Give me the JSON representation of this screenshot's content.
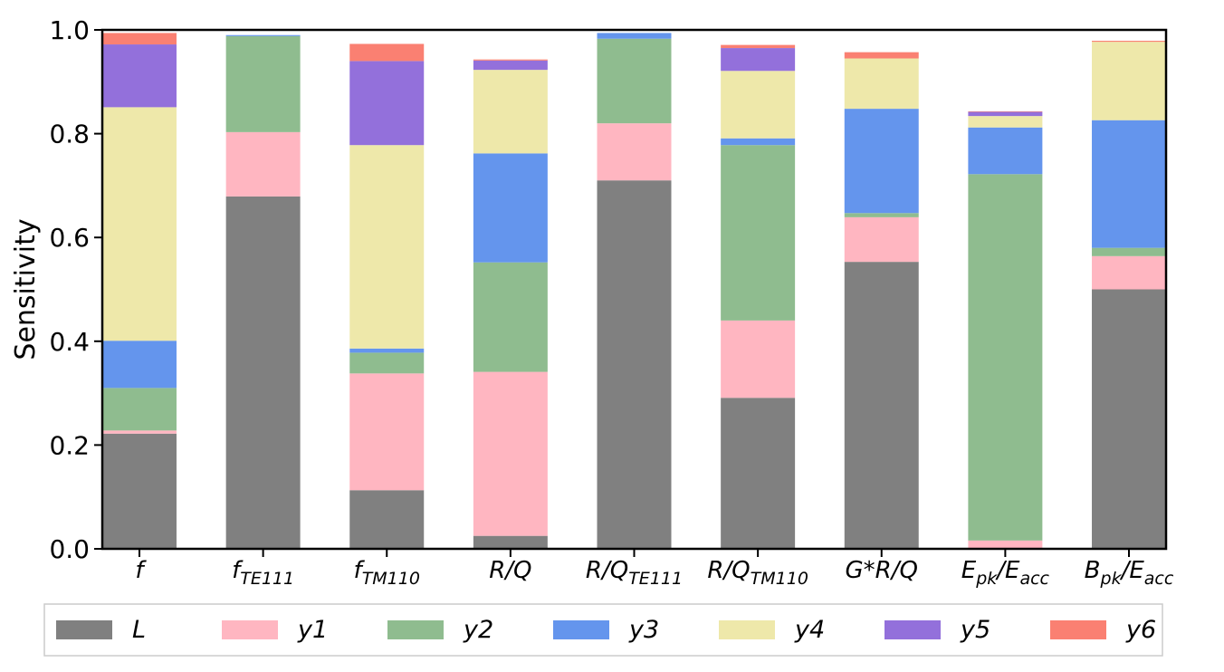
{
  "chart_data": {
    "type": "bar",
    "stacked": true,
    "ylabel": "Sensitivity",
    "ylim": [
      0,
      1.0
    ],
    "yticks": [
      "0.0",
      "0.2",
      "0.4",
      "0.6",
      "0.8",
      "1.0"
    ],
    "grid": false,
    "legend_position": "bottom",
    "categories": [
      {
        "main": "f",
        "sub": ""
      },
      {
        "main": "f",
        "sub": "TE111"
      },
      {
        "main": "f",
        "sub": "TM110"
      },
      {
        "main": "R/Q",
        "sub": ""
      },
      {
        "main": "R/Q",
        "sub": "TE111"
      },
      {
        "main": "R/Q",
        "sub": "TM110"
      },
      {
        "main": "G*R/Q",
        "sub": ""
      },
      {
        "main": "E",
        "sub": "pk",
        "main2": "/E",
        "sub2": "acc"
      },
      {
        "main": "B",
        "sub": "pk",
        "main2": "/E",
        "sub2": "acc"
      }
    ],
    "series": [
      {
        "name": "L",
        "color": "#808080",
        "values": [
          0.222,
          0.679,
          0.113,
          0.025,
          0.71,
          0.291,
          0.553,
          0.0,
          0.5
        ]
      },
      {
        "name": "y1",
        "color": "#ffb6c1",
        "values": [
          0.006,
          0.124,
          0.225,
          0.316,
          0.11,
          0.149,
          0.086,
          0.016,
          0.064
        ]
      },
      {
        "name": "y2",
        "color": "#8fbc8f",
        "values": [
          0.082,
          0.185,
          0.04,
          0.211,
          0.163,
          0.338,
          0.008,
          0.706,
          0.016
        ]
      },
      {
        "name": "y3",
        "color": "#6495ed",
        "values": [
          0.091,
          0.002,
          0.008,
          0.21,
          0.011,
          0.013,
          0.201,
          0.09,
          0.246
        ]
      },
      {
        "name": "y4",
        "color": "#eee8aa",
        "values": [
          0.45,
          0.0,
          0.392,
          0.161,
          0.0,
          0.13,
          0.097,
          0.022,
          0.151
        ]
      },
      {
        "name": "y5",
        "color": "#9370db",
        "values": [
          0.121,
          0.0,
          0.162,
          0.018,
          0.0,
          0.044,
          0.0,
          0.008,
          0.0
        ]
      },
      {
        "name": "y6",
        "color": "#fa8072",
        "values": [
          0.022,
          0.0,
          0.033,
          0.002,
          0.0,
          0.006,
          0.012,
          0.001,
          0.002
        ]
      }
    ]
  }
}
